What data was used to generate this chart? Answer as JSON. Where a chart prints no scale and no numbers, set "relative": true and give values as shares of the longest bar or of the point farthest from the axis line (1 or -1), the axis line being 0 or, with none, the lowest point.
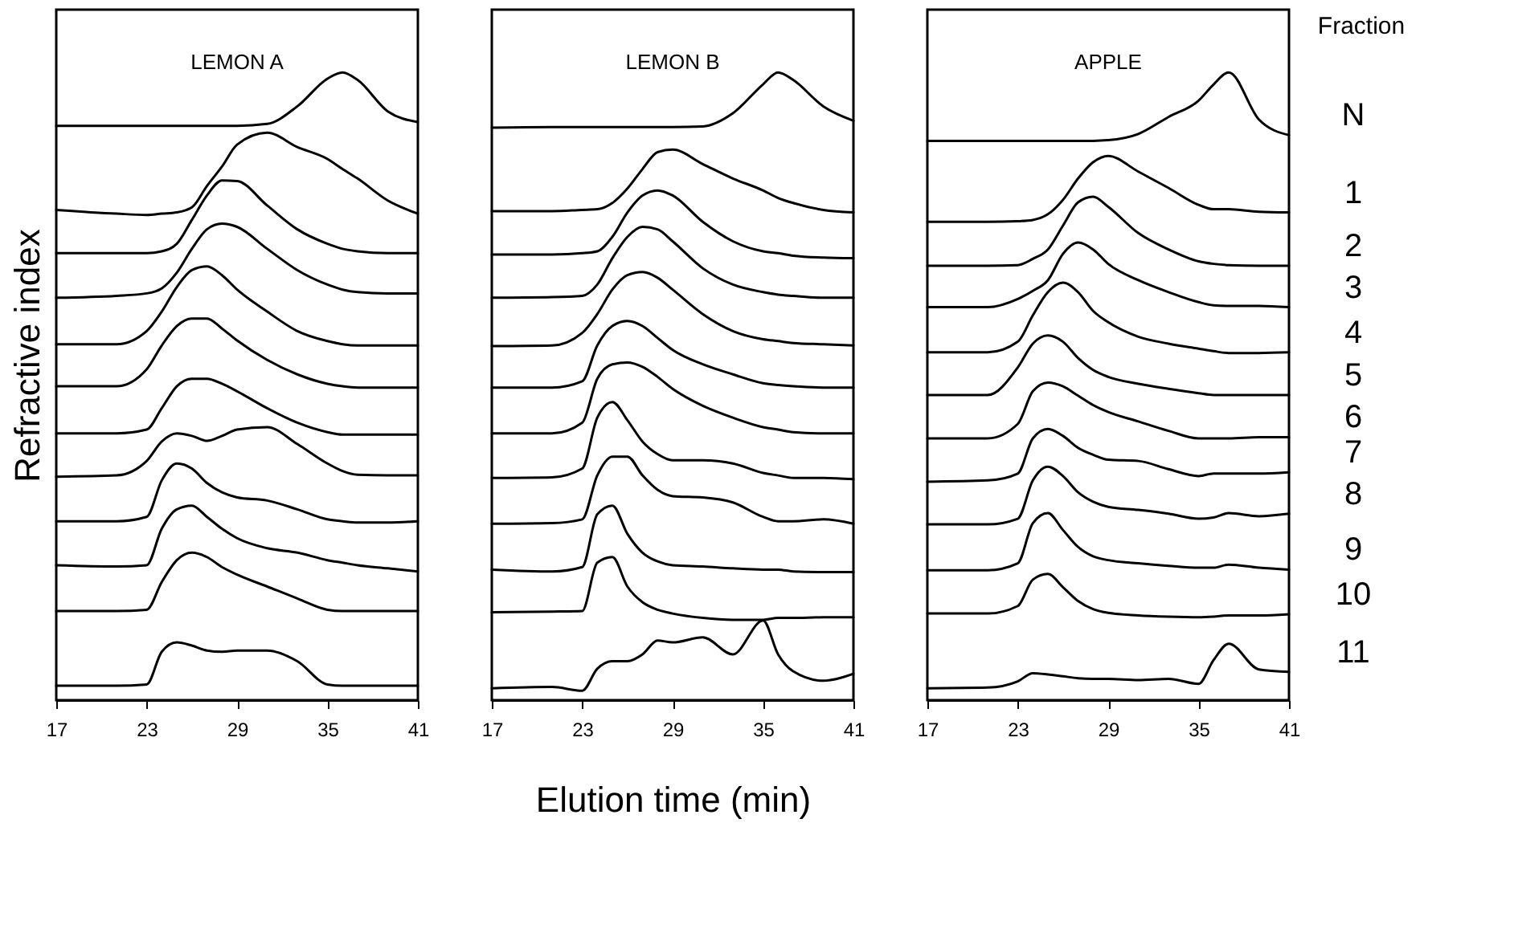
{
  "chart_data": [
    {
      "type": "line",
      "title": "LEMON A",
      "ylabel": "Refractive index",
      "relative": true,
      "xlim": [
        17,
        41
      ],
      "xticks": [
        17,
        23,
        29,
        35,
        41
      ],
      "x": [
        17,
        21,
        23,
        24,
        25,
        26,
        27,
        28,
        29,
        31,
        33,
        35,
        36,
        37,
        39,
        41
      ],
      "series": [
        {
          "color": "#000000",
          "values": [
            0.915,
            0.915,
            0.915,
            0.915,
            0.915,
            0.915,
            0.915,
            0.915,
            0.915,
            0.918,
            0.946,
            0.99,
            1.0,
            0.988,
            0.938,
            0.921
          ]
        },
        {
          "color": "#000000",
          "values": [
            0.781,
            0.775,
            0.773,
            0.775,
            0.777,
            0.785,
            0.819,
            0.85,
            0.885,
            0.904,
            0.881,
            0.862,
            0.846,
            0.831,
            0.796,
            0.775
          ]
        },
        {
          "color": "#000000",
          "values": [
            0.712,
            0.712,
            0.712,
            0.715,
            0.727,
            0.765,
            0.804,
            0.828,
            0.827,
            0.788,
            0.75,
            0.727,
            0.719,
            0.715,
            0.712,
            0.712
          ]
        },
        {
          "color": "#000000",
          "values": [
            0.641,
            0.644,
            0.648,
            0.656,
            0.681,
            0.719,
            0.75,
            0.759,
            0.754,
            0.719,
            0.685,
            0.662,
            0.654,
            0.65,
            0.648,
            0.648
          ]
        },
        {
          "color": "#000000",
          "values": [
            0.567,
            0.567,
            0.588,
            0.619,
            0.658,
            0.685,
            0.691,
            0.677,
            0.654,
            0.619,
            0.588,
            0.572,
            0.567,
            0.565,
            0.565,
            0.565
          ]
        },
        {
          "color": "#000000",
          "values": [
            0.5,
            0.5,
            0.527,
            0.565,
            0.596,
            0.608,
            0.608,
            0.592,
            0.573,
            0.542,
            0.519,
            0.504,
            0.5,
            0.498,
            0.498,
            0.498
          ]
        },
        {
          "color": "#000000",
          "values": [
            0.425,
            0.425,
            0.431,
            0.465,
            0.5,
            0.512,
            0.512,
            0.504,
            0.492,
            0.465,
            0.442,
            0.427,
            0.423,
            0.423,
            0.423,
            0.423
          ]
        },
        {
          "color": "#000000",
          "values": [
            0.356,
            0.358,
            0.381,
            0.412,
            0.425,
            0.421,
            0.413,
            0.421,
            0.431,
            0.435,
            0.408,
            0.377,
            0.365,
            0.359,
            0.358,
            0.358
          ]
        },
        {
          "color": "#000000",
          "values": [
            0.285,
            0.285,
            0.292,
            0.35,
            0.377,
            0.369,
            0.346,
            0.331,
            0.323,
            0.318,
            0.304,
            0.288,
            0.285,
            0.283,
            0.283,
            0.285
          ]
        },
        {
          "color": "#000000",
          "values": [
            0.215,
            0.213,
            0.215,
            0.273,
            0.304,
            0.31,
            0.292,
            0.273,
            0.258,
            0.242,
            0.235,
            0.223,
            0.219,
            0.215,
            0.21,
            0.205
          ]
        },
        {
          "color": "#000000",
          "values": [
            0.142,
            0.142,
            0.144,
            0.188,
            0.223,
            0.235,
            0.228,
            0.212,
            0.2,
            0.181,
            0.162,
            0.144,
            0.142,
            0.142,
            0.142,
            0.142
          ]
        },
        {
          "color": "#000000",
          "values": [
            0.023,
            0.023,
            0.025,
            0.077,
            0.092,
            0.087,
            0.079,
            0.077,
            0.079,
            0.079,
            0.062,
            0.025,
            0.023,
            0.023,
            0.023,
            0.023
          ]
        }
      ]
    },
    {
      "type": "line",
      "title": "LEMON B",
      "xlabel": "Elution time (min)",
      "relative": true,
      "xlim": [
        17,
        41
      ],
      "xticks": [
        17,
        23,
        29,
        35,
        41
      ],
      "x": [
        17,
        21,
        23,
        24,
        25,
        26,
        27,
        28,
        29,
        31,
        33,
        35,
        36,
        37,
        39,
        41
      ],
      "series": [
        {
          "color": "#000000",
          "values": [
            0.912,
            0.913,
            0.913,
            0.913,
            0.913,
            0.913,
            0.913,
            0.913,
            0.913,
            0.914,
            0.935,
            0.981,
            1.0,
            0.988,
            0.946,
            0.923
          ]
        },
        {
          "color": "#000000",
          "values": [
            0.779,
            0.779,
            0.781,
            0.782,
            0.792,
            0.815,
            0.846,
            0.873,
            0.877,
            0.854,
            0.831,
            0.812,
            0.8,
            0.792,
            0.781,
            0.777
          ]
        },
        {
          "color": "#000000",
          "values": [
            0.71,
            0.71,
            0.712,
            0.715,
            0.738,
            0.777,
            0.804,
            0.812,
            0.804,
            0.762,
            0.731,
            0.715,
            0.712,
            0.708,
            0.705,
            0.704
          ]
        },
        {
          "color": "#000000",
          "values": [
            0.641,
            0.642,
            0.644,
            0.662,
            0.704,
            0.738,
            0.754,
            0.75,
            0.731,
            0.688,
            0.662,
            0.65,
            0.646,
            0.644,
            0.641,
            0.641
          ]
        },
        {
          "color": "#000000",
          "values": [
            0.564,
            0.565,
            0.585,
            0.615,
            0.654,
            0.677,
            0.682,
            0.673,
            0.654,
            0.615,
            0.588,
            0.575,
            0.572,
            0.569,
            0.567,
            0.565
          ]
        },
        {
          "color": "#000000",
          "values": [
            0.498,
            0.498,
            0.508,
            0.565,
            0.596,
            0.604,
            0.596,
            0.577,
            0.558,
            0.535,
            0.519,
            0.505,
            0.502,
            0.5,
            0.498,
            0.498
          ]
        },
        {
          "color": "#000000",
          "values": [
            0.425,
            0.425,
            0.442,
            0.512,
            0.535,
            0.538,
            0.531,
            0.515,
            0.496,
            0.469,
            0.45,
            0.435,
            0.431,
            0.427,
            0.425,
            0.425
          ]
        },
        {
          "color": "#000000",
          "values": [
            0.354,
            0.355,
            0.369,
            0.45,
            0.475,
            0.446,
            0.412,
            0.392,
            0.382,
            0.382,
            0.377,
            0.362,
            0.358,
            0.354,
            0.354,
            0.352
          ]
        },
        {
          "color": "#000000",
          "values": [
            0.281,
            0.282,
            0.288,
            0.358,
            0.388,
            0.388,
            0.358,
            0.335,
            0.325,
            0.323,
            0.315,
            0.292,
            0.285,
            0.285,
            0.288,
            0.281
          ]
        },
        {
          "color": "#000000",
          "values": [
            0.208,
            0.205,
            0.212,
            0.296,
            0.31,
            0.265,
            0.235,
            0.221,
            0.215,
            0.213,
            0.21,
            0.208,
            0.208,
            0.205,
            0.204,
            0.204
          ]
        },
        {
          "color": "#000000",
          "values": [
            0.14,
            0.141,
            0.142,
            0.219,
            0.228,
            0.181,
            0.156,
            0.144,
            0.138,
            0.131,
            0.128,
            0.128,
            0.131,
            0.131,
            0.132,
            0.132
          ]
        },
        {
          "color": "#000000",
          "values": [
            0.019,
            0.021,
            0.015,
            0.05,
            0.062,
            0.062,
            0.073,
            0.095,
            0.092,
            0.1,
            0.073,
            0.127,
            0.073,
            0.046,
            0.031,
            0.042
          ]
        }
      ]
    },
    {
      "type": "line",
      "title": "APPLE",
      "legend_title": "Fraction",
      "relative": true,
      "xlim": [
        17,
        41
      ],
      "xticks": [
        17,
        23,
        29,
        35,
        41
      ],
      "x": [
        17,
        21,
        23,
        24,
        25,
        26,
        27,
        28,
        29,
        31,
        33,
        35,
        36,
        37,
        39,
        41
      ],
      "series": [
        {
          "name": "N",
          "color": "#000000",
          "values": [
            0.891,
            0.891,
            0.891,
            0.891,
            0.891,
            0.891,
            0.891,
            0.891,
            0.892,
            0.902,
            0.929,
            0.955,
            0.981,
            1.0,
            0.925,
            0.9
          ]
        },
        {
          "name": "1",
          "color": "#000000",
          "values": [
            0.762,
            0.762,
            0.763,
            0.765,
            0.774,
            0.797,
            0.831,
            0.857,
            0.867,
            0.842,
            0.816,
            0.789,
            0.782,
            0.782,
            0.778,
            0.777
          ]
        },
        {
          "name": "2",
          "color": "#000000",
          "values": [
            0.692,
            0.692,
            0.693,
            0.703,
            0.718,
            0.756,
            0.793,
            0.802,
            0.786,
            0.744,
            0.718,
            0.699,
            0.695,
            0.693,
            0.692,
            0.692
          ]
        },
        {
          "name": "3",
          "color": "#000000",
          "values": [
            0.626,
            0.626,
            0.639,
            0.652,
            0.669,
            0.711,
            0.729,
            0.718,
            0.695,
            0.669,
            0.65,
            0.634,
            0.629,
            0.628,
            0.628,
            0.626
          ]
        },
        {
          "name": "4",
          "color": "#000000",
          "values": [
            0.554,
            0.554,
            0.571,
            0.613,
            0.65,
            0.665,
            0.65,
            0.62,
            0.602,
            0.579,
            0.568,
            0.56,
            0.556,
            0.553,
            0.553,
            0.554
          ]
        },
        {
          "name": "5",
          "color": "#000000",
          "values": [
            0.486,
            0.486,
            0.53,
            0.568,
            0.581,
            0.571,
            0.545,
            0.526,
            0.515,
            0.504,
            0.496,
            0.489,
            0.486,
            0.486,
            0.486,
            0.486
          ]
        },
        {
          "name": "6",
          "color": "#000000",
          "values": [
            0.417,
            0.417,
            0.44,
            0.492,
            0.506,
            0.5,
            0.485,
            0.47,
            0.459,
            0.444,
            0.429,
            0.417,
            0.417,
            0.417,
            0.419,
            0.419
          ]
        },
        {
          "name": "7",
          "color": "#000000",
          "values": [
            0.348,
            0.35,
            0.361,
            0.417,
            0.432,
            0.421,
            0.402,
            0.391,
            0.383,
            0.381,
            0.368,
            0.357,
            0.361,
            0.361,
            0.361,
            0.363
          ]
        },
        {
          "name": "8",
          "color": "#000000",
          "values": [
            0.28,
            0.28,
            0.289,
            0.35,
            0.372,
            0.357,
            0.331,
            0.316,
            0.308,
            0.303,
            0.297,
            0.289,
            0.291,
            0.298,
            0.293,
            0.297
          ]
        },
        {
          "name": "9",
          "color": "#000000",
          "values": [
            0.207,
            0.207,
            0.218,
            0.282,
            0.298,
            0.271,
            0.244,
            0.229,
            0.223,
            0.218,
            0.214,
            0.211,
            0.211,
            0.216,
            0.211,
            0.208
          ]
        },
        {
          "name": "10",
          "color": "#000000",
          "values": [
            0.138,
            0.138,
            0.15,
            0.192,
            0.201,
            0.18,
            0.158,
            0.145,
            0.139,
            0.135,
            0.133,
            0.132,
            0.133,
            0.135,
            0.135,
            0.137
          ]
        },
        {
          "name": "11",
          "color": "#000000",
          "values": [
            0.019,
            0.02,
            0.03,
            0.043,
            0.041,
            0.038,
            0.035,
            0.034,
            0.034,
            0.032,
            0.034,
            0.026,
            0.064,
            0.09,
            0.049,
            0.045
          ]
        }
      ]
    }
  ]
}
